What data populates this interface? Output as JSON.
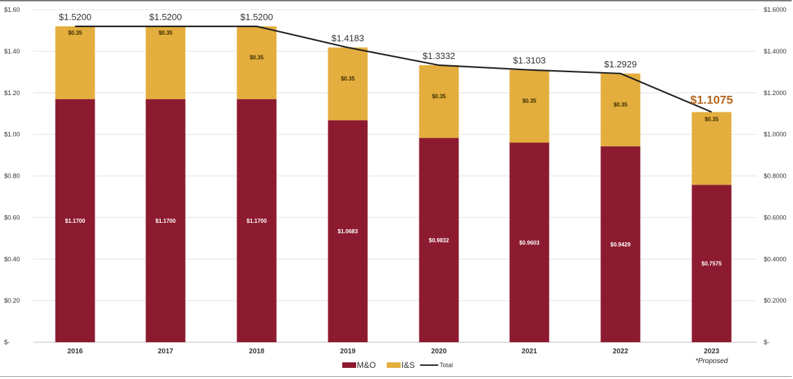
{
  "chart_data": {
    "type": "bar",
    "stacked": true,
    "categories": [
      "2016",
      "2017",
      "2018",
      "2019",
      "2020",
      "2021",
      "2022",
      "2023"
    ],
    "series": [
      {
        "name": "M&O",
        "color": "#8d1b30",
        "values": [
          1.17,
          1.17,
          1.17,
          1.0683,
          0.9832,
          0.9603,
          0.9429,
          0.7575
        ],
        "labels": [
          "$1.1700",
          "$1.1700",
          "$1.1700",
          "$1.0683",
          "$0.9832",
          "$0.9603",
          "$0.9429",
          "$0.7575"
        ]
      },
      {
        "name": "I&S",
        "color": "#e3ae3d",
        "values": [
          0.35,
          0.35,
          0.35,
          0.35,
          0.35,
          0.35,
          0.35,
          0.35
        ],
        "labels": [
          "$0.35",
          "$0.35",
          "$0.35",
          "$0.35",
          "$0.35",
          "$0.35",
          "$0.35",
          "$0.35"
        ]
      }
    ],
    "total": {
      "name": "Total",
      "type": "line",
      "color": "#222222",
      "values": [
        1.52,
        1.52,
        1.52,
        1.4183,
        1.3332,
        1.3103,
        1.2929,
        1.1075
      ],
      "labels": [
        "$1.5200",
        "$1.5200",
        "$1.5200",
        "$1.4183",
        "$1.3332",
        "$1.3103",
        "$1.2929",
        "$1.1075"
      ],
      "highlight_color": "#b5651d"
    },
    "ylim": [
      0,
      1.6
    ],
    "yticks_left": [
      "$-",
      "$0.20",
      "$0.40",
      "$0.60",
      "$0.80",
      "$1.00",
      "$1.20",
      "$1.40",
      "$1.60"
    ],
    "yticks_right": [
      "$-",
      "$0.2000",
      "$0.4000",
      "$0.6000",
      "$0.8000",
      "$1.0000",
      "$1.2000",
      "$1.4000",
      "$1.6000"
    ],
    "grid": true,
    "legend_position": "bottom",
    "annotation": "*Proposed"
  }
}
